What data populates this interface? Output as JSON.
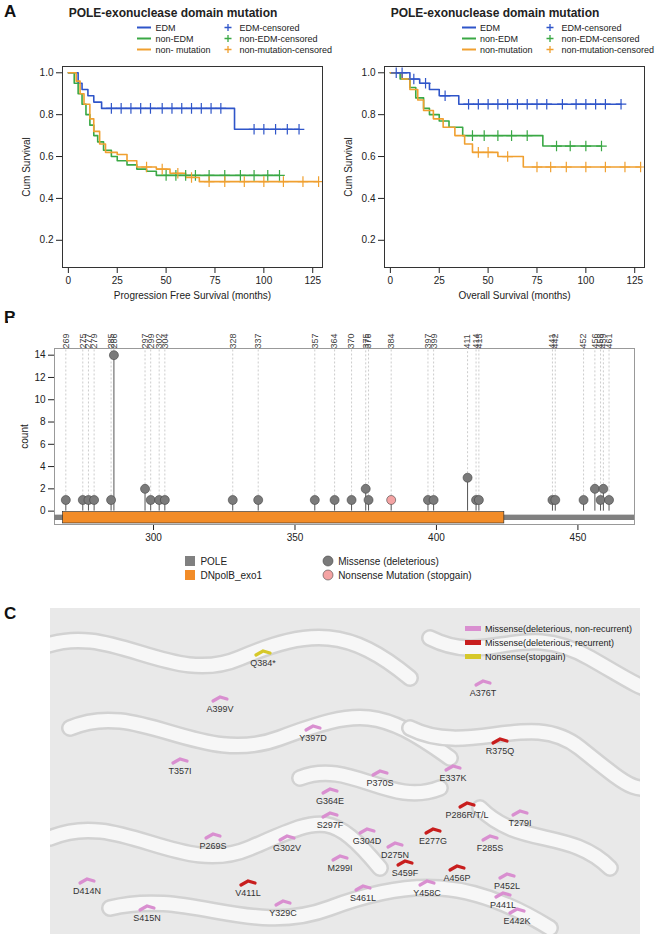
{
  "panel_labels": [
    "A",
    "B",
    "C"
  ],
  "chart_data": [
    {
      "type": "line",
      "title": "POLE-exonuclease domain mutation",
      "xlabel": "Progression Free Survival (months)",
      "ylabel": "Cum Survival",
      "xlim": [
        -3,
        130
      ],
      "xticks": [
        0,
        25,
        50,
        75,
        100,
        125
      ],
      "ylim": [
        0.07,
        1.03
      ],
      "yticks": [
        0.2,
        0.4,
        0.6,
        0.8,
        {
          "value": 1,
          "label": "1.0"
        }
      ],
      "legend": "top right",
      "series": [
        {
          "name": "EDM",
          "color": "#2f55c9",
          "type": "line",
          "line_style": "step",
          "x": [
            0,
            5,
            7,
            10,
            13,
            17,
            85,
            118
          ],
          "values": [
            1,
            0.95,
            0.92,
            0.89,
            0.86,
            0.83,
            0.73,
            0.73
          ]
        },
        {
          "name": "non-EDM",
          "color": "#3aa845",
          "type": "line",
          "line_style": "step",
          "x": [
            0,
            3,
            5,
            7,
            9,
            11,
            13,
            15,
            18,
            22,
            25,
            30,
            35,
            40,
            45,
            108
          ],
          "values": [
            1,
            0.95,
            0.9,
            0.85,
            0.8,
            0.75,
            0.7,
            0.67,
            0.63,
            0.6,
            0.58,
            0.56,
            0.54,
            0.53,
            0.51,
            0.51
          ]
        },
        {
          "name": "non- mutation",
          "color": "#f0a030",
          "type": "line",
          "line_style": "step",
          "x": [
            0,
            4,
            6,
            8,
            11,
            13,
            16,
            19,
            25,
            30,
            35,
            45,
            52,
            60,
            67,
            128
          ],
          "values": [
            1,
            0.96,
            0.9,
            0.85,
            0.78,
            0.72,
            0.66,
            0.62,
            0.61,
            0.58,
            0.55,
            0.54,
            0.52,
            0.5,
            0.48,
            0.48
          ]
        },
        {
          "name": "EDM-censored",
          "color": "#2f55c9",
          "type": "scatter",
          "marker": "plus",
          "x": [
            22,
            27,
            32,
            37,
            42,
            48,
            53,
            58,
            63,
            68,
            73,
            78,
            95,
            100,
            106,
            112,
            118
          ],
          "values": [
            0.83,
            0.83,
            0.83,
            0.83,
            0.83,
            0.83,
            0.83,
            0.83,
            0.83,
            0.83,
            0.83,
            0.83,
            0.73,
            0.73,
            0.73,
            0.73,
            0.73
          ]
        },
        {
          "name": "non-EDM-censored",
          "color": "#3aa845",
          "type": "scatter",
          "marker": "plus",
          "x": [
            50,
            55,
            60,
            65,
            72,
            80,
            88,
            95,
            102,
            108
          ],
          "values": [
            0.51,
            0.51,
            0.51,
            0.51,
            0.51,
            0.51,
            0.51,
            0.51,
            0.51,
            0.51
          ]
        },
        {
          "name": "non-mutation-censored",
          "color": "#f0a030",
          "type": "scatter",
          "marker": "plus",
          "x": [
            40,
            48,
            56,
            63,
            72,
            80,
            90,
            100,
            110,
            120,
            128
          ],
          "values": [
            0.55,
            0.54,
            0.52,
            0.5,
            0.48,
            0.48,
            0.48,
            0.48,
            0.48,
            0.48,
            0.48
          ]
        }
      ]
    },
    {
      "type": "line",
      "title": "POLE-exonuclease domain mutation",
      "xlabel": "Overall Survival (months)",
      "ylabel": "Cum Survival",
      "xlim": [
        -3,
        130
      ],
      "xticks": [
        0,
        25,
        50,
        75,
        100,
        125
      ],
      "ylim": [
        0.07,
        1.03
      ],
      "yticks": [
        0.2,
        0.4,
        0.6,
        0.8,
        {
          "value": 1,
          "label": "1.0"
        }
      ],
      "legend": "top right",
      "series": [
        {
          "name": "EDM",
          "color": "#2f55c9",
          "type": "line",
          "line_style": "step",
          "x": [
            0,
            10,
            15,
            20,
            25,
            35,
            118
          ],
          "values": [
            1,
            0.97,
            0.95,
            0.92,
            0.89,
            0.85,
            0.85
          ]
        },
        {
          "name": "non-EDM",
          "color": "#3aa845",
          "type": "line",
          "line_style": "step",
          "x": [
            0,
            5,
            10,
            13,
            17,
            20,
            25,
            30,
            37,
            78,
            108
          ],
          "values": [
            1,
            0.97,
            0.93,
            0.88,
            0.83,
            0.8,
            0.77,
            0.74,
            0.7,
            0.65,
            0.65
          ]
        },
        {
          "name": "non-mutation",
          "color": "#f0a030",
          "type": "line",
          "line_style": "step",
          "x": [
            0,
            6,
            10,
            14,
            17,
            22,
            27,
            33,
            38,
            42,
            55,
            68,
            128
          ],
          "values": [
            1,
            0.97,
            0.92,
            0.87,
            0.82,
            0.78,
            0.74,
            0.7,
            0.66,
            0.62,
            0.6,
            0.55,
            0.55
          ]
        },
        {
          "name": "EDM-censored",
          "color": "#2f55c9",
          "type": "scatter",
          "marker": "plus",
          "x": [
            3,
            6,
            12,
            18,
            28,
            40,
            45,
            50,
            55,
            60,
            65,
            70,
            75,
            80,
            88,
            95,
            100,
            105,
            110,
            118
          ],
          "values": [
            1,
            1,
            0.97,
            0.95,
            0.89,
            0.85,
            0.85,
            0.85,
            0.85,
            0.85,
            0.85,
            0.85,
            0.85,
            0.85,
            0.85,
            0.85,
            0.85,
            0.85,
            0.85,
            0.85
          ]
        },
        {
          "name": "non-EDM-censored",
          "color": "#3aa845",
          "type": "scatter",
          "marker": "plus",
          "x": [
            42,
            48,
            55,
            62,
            70,
            85,
            92,
            100,
            108
          ],
          "values": [
            0.7,
            0.7,
            0.7,
            0.7,
            0.7,
            0.65,
            0.65,
            0.65,
            0.65
          ]
        },
        {
          "name": "non-mutation-censored",
          "color": "#f0a030",
          "type": "scatter",
          "marker": "plus",
          "x": [
            45,
            50,
            60,
            75,
            82,
            90,
            100,
            110,
            120,
            128
          ],
          "values": [
            0.62,
            0.62,
            0.6,
            0.55,
            0.55,
            0.55,
            0.55,
            0.55,
            0.55,
            0.55
          ]
        }
      ]
    },
    {
      "type": "lollipop",
      "ylabel": "count",
      "xlim": [
        265,
        470
      ],
      "xticks": [
        300,
        350,
        400,
        450
      ],
      "ylim": [
        -1.2,
        14.6
      ],
      "yticks": [
        0,
        2,
        4,
        6,
        8,
        10,
        12,
        14
      ],
      "legend": "bottom",
      "domains": [
        {
          "name": "POLE",
          "start": 265,
          "end": 470,
          "color": "#808080"
        },
        {
          "name": "DNpolB_exo1",
          "start": 268,
          "end": 424,
          "color": "#f28c28"
        }
      ],
      "series": [
        {
          "name": "Missense (deleterious)",
          "color": "#7a7a7a",
          "marker": "circle",
          "x": [
            269,
            275,
            277,
            279,
            285,
            286,
            297,
            299,
            302,
            304,
            328,
            337,
            357,
            364,
            370,
            375,
            376,
            397,
            399,
            411,
            414,
            415,
            441,
            442,
            452,
            456,
            458,
            459,
            461
          ],
          "values": [
            1,
            1,
            1,
            1,
            1,
            14,
            2,
            1,
            1,
            1,
            1,
            1,
            1,
            1,
            1,
            2,
            1,
            1,
            1,
            3,
            1,
            1,
            1,
            1,
            1,
            2,
            1,
            2,
            1
          ]
        },
        {
          "name": "Nonsense Mutation (stopgain)",
          "color": "#f4a3a3",
          "marker": "circle",
          "x": [
            384
          ],
          "values": [
            1
          ]
        }
      ]
    }
  ],
  "structure": {
    "legend": "top right",
    "groups": [
      {
        "name": "Missense(deleterious, non-recurrent)",
        "color": "#d98fd0",
        "residues": [
          "A376T",
          "A399V",
          "Y397D",
          "E337K",
          "T357I",
          "P370S",
          "G364E",
          "T279I",
          "S297F",
          "F285S",
          "G302V",
          "G304D",
          "D275N",
          "M299I",
          "P452L",
          "P269S",
          "Y458C",
          "P441L",
          "E442K",
          "S461L",
          "D414N",
          "S415N",
          "Y329C"
        ]
      },
      {
        "name": "Missense(deleterious, recurrent)",
        "color": "#c81e1e",
        "residues": [
          "R375Q",
          "P286R/T/L",
          "E277G",
          "S459F",
          "A456P",
          "V411L"
        ]
      },
      {
        "name": "Nonsense(stopgain)",
        "color": "#d6c82a",
        "residues": [
          "Q384*"
        ]
      }
    ]
  }
}
